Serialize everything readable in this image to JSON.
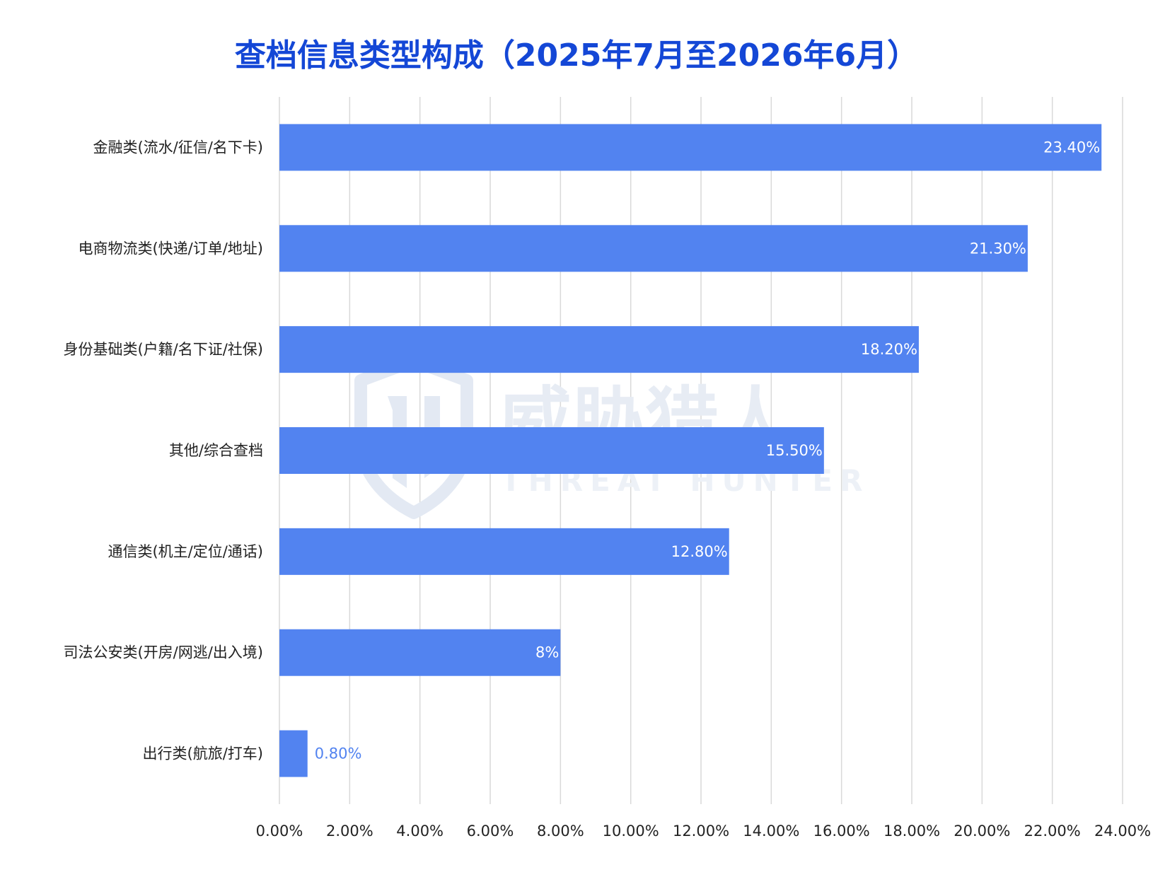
{
  "chart_data": {
    "type": "bar",
    "orientation": "horizontal",
    "title": "查档信息类型构成（2025年7月至2026年6月）",
    "categories": [
      "金融类(流水/征信/名下卡)",
      "电商物流类(快递/订单/地址)",
      "身份基础类(户籍/名下证/社保)",
      "其他/综合查档",
      "通信类(机主/定位/通话)",
      "司法公安类(开房/网逃/出入境)",
      "出行类(航旅/打车)"
    ],
    "values": [
      23.4,
      21.3,
      18.2,
      15.5,
      12.8,
      8,
      0.8
    ],
    "data_labels": [
      "23.40%",
      "21.30%",
      "18.20%",
      "15.50%",
      "12.80%",
      "8%",
      "0.80%"
    ],
    "xlim": [
      0,
      24
    ],
    "x_ticks": [
      0,
      2,
      4,
      6,
      8,
      10,
      12,
      14,
      16,
      18,
      20,
      22,
      24
    ],
    "x_tick_labels": [
      "0.00%",
      "2.00%",
      "4.00%",
      "6.00%",
      "8.00%",
      "10.00%",
      "12.00%",
      "14.00%",
      "16.00%",
      "18.00%",
      "20.00%",
      "22.00%",
      "24.00%"
    ],
    "xlabel": "",
    "ylabel": "",
    "grid": "vertical",
    "legend": "none",
    "colors": {
      "bar": "#5283f0",
      "title": "#1447d6",
      "grid": "#d9d9d9",
      "label_inside": "#ffffff",
      "label_outside": "#5283f0"
    }
  },
  "watermark": {
    "logo_letters": "TH",
    "text_cn": "威胁猎人",
    "text_en": "THREAT HUNTER"
  }
}
